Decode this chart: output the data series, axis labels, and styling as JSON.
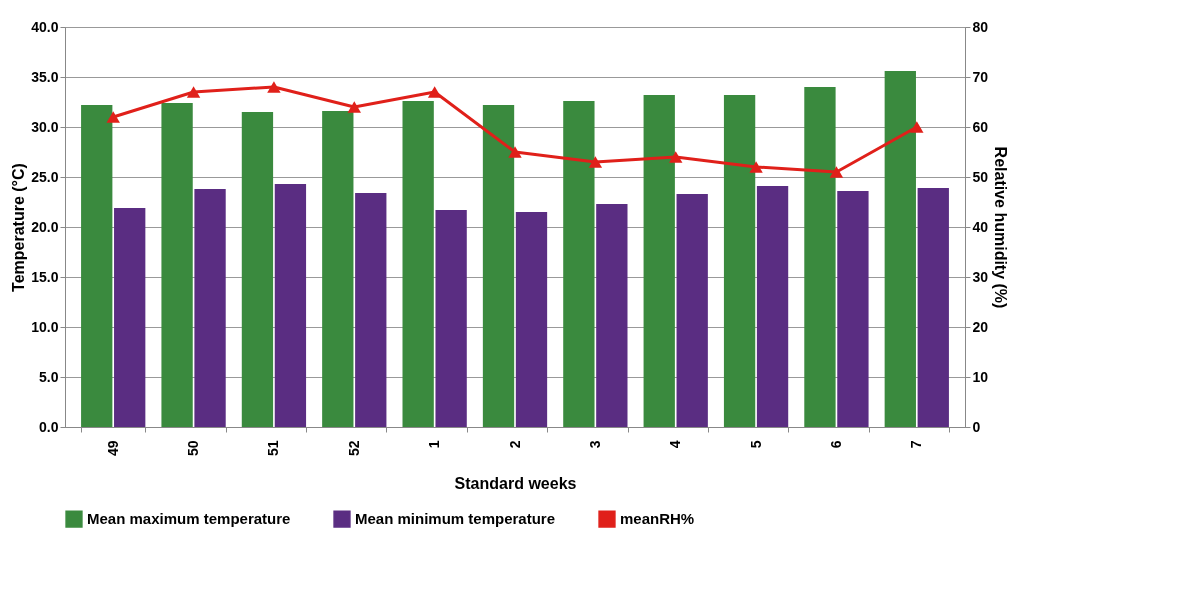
{
  "chart_data": {
    "type": "bar",
    "xlabel": "Standard weeks",
    "ylabel": "Temperature (°C)",
    "y2label": "Relative humidity (%)",
    "categories": [
      "49",
      "50",
      "51",
      "52",
      "1",
      "2",
      "3",
      "4",
      "5",
      "6",
      "7"
    ],
    "series": [
      {
        "name": "Mean maximum temperature",
        "color": "#3a8a3e",
        "values": [
          32.2,
          32.4,
          31.5,
          31.6,
          32.6,
          32.2,
          32.6,
          33.2,
          33.2,
          34.0,
          35.6
        ]
      },
      {
        "name": "Mean minimum temperature",
        "color": "#5a2d82",
        "values": [
          21.9,
          23.8,
          24.3,
          23.4,
          21.7,
          21.5,
          22.3,
          23.3,
          24.1,
          23.6,
          23.9
        ]
      },
      {
        "name": "meanRH%",
        "color": "#e0201a",
        "type": "line",
        "axis": "y2",
        "marker": "triangle",
        "values": [
          62,
          67,
          68,
          64,
          67,
          55,
          53,
          54,
          52,
          51,
          60
        ]
      }
    ],
    "ylim": [
      0,
      40
    ],
    "yticks": [
      {
        "value": 0,
        "label": "0.0"
      },
      {
        "value": 5,
        "label": "5.0"
      },
      {
        "value": 10,
        "label": "10.0"
      },
      {
        "value": 15,
        "label": "15.0"
      },
      {
        "value": 20,
        "label": "20.0"
      },
      {
        "value": 25,
        "label": "25.0"
      },
      {
        "value": 30,
        "label": "30.0"
      },
      {
        "value": 35,
        "label": "35.0"
      },
      {
        "value": 40,
        "label": "40.0"
      }
    ],
    "y2lim": [
      0,
      80
    ],
    "y2ticks": [
      0,
      10,
      20,
      30,
      40,
      50,
      60,
      70,
      80
    ],
    "grid": "y",
    "legend": "bottom"
  }
}
